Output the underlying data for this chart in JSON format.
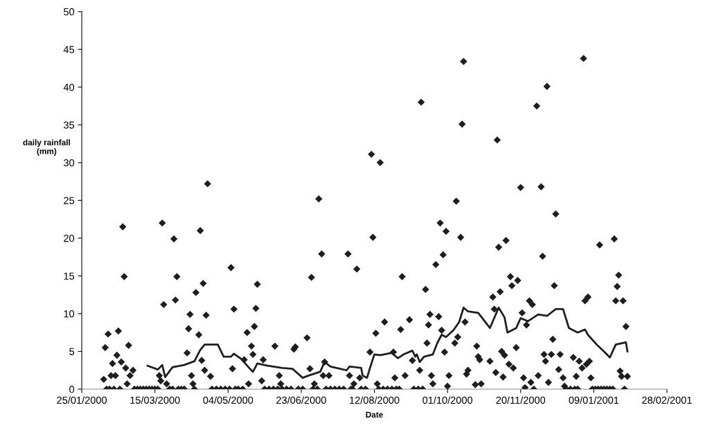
{
  "chart_data": {
    "type": "scatter",
    "xlabel": "Date",
    "ylabel": "daily rainfall\n(mm)",
    "xlim": [
      "2000-01-25",
      "2001-02-28"
    ],
    "xticks": [
      {
        "value": "2000-01-25",
        "label": "25/01/2000"
      },
      {
        "value": "2000-03-15",
        "label": "15/03/2000"
      },
      {
        "value": "2000-05-04",
        "label": "04/05/2000"
      },
      {
        "value": "2000-06-23",
        "label": "23/06/2000"
      },
      {
        "value": "2000-08-12",
        "label": "12/08/2000"
      },
      {
        "value": "2000-10-01",
        "label": "01/10/2000"
      },
      {
        "value": "2000-11-20",
        "label": "20/11/2000"
      },
      {
        "value": "2001-01-09",
        "label": "09/01/2001"
      },
      {
        "value": "2001-02-28",
        "label": "28/02/2001"
      }
    ],
    "ylim": [
      0,
      50
    ],
    "yticks": [
      0,
      5,
      10,
      15,
      20,
      25,
      30,
      35,
      40,
      45,
      50
    ],
    "grid": false,
    "series": [
      {
        "marker": "diamond",
        "color": "#1e1e1e",
        "x": [
          "2000-02-09",
          "2000-02-10",
          "2000-02-11",
          "2000-02-12",
          "2000-02-13",
          "2000-02-14",
          "2000-02-15",
          "2000-02-16",
          "2000-02-17",
          "2000-02-18",
          "2000-02-19",
          "2000-02-20",
          "2000-02-21",
          "2000-02-22",
          "2000-02-23",
          "2000-02-24",
          "2000-02-25",
          "2000-02-26",
          "2000-02-27",
          "2000-02-29",
          "2000-03-01",
          "2000-03-03",
          "2000-03-05",
          "2000-03-07",
          "2000-03-09",
          "2000-03-11",
          "2000-03-13",
          "2000-03-15",
          "2000-03-17",
          "2000-03-18",
          "2000-03-19",
          "2000-03-20",
          "2000-03-21",
          "2000-03-23",
          "2000-03-25",
          "2000-03-27",
          "2000-03-28",
          "2000-03-29",
          "2000-03-30",
          "2000-03-31",
          "2000-04-02",
          "2000-04-04",
          "2000-04-06",
          "2000-04-07",
          "2000-04-08",
          "2000-04-09",
          "2000-04-10",
          "2000-04-11",
          "2000-04-12",
          "2000-04-14",
          "2000-04-15",
          "2000-04-16",
          "2000-04-17",
          "2000-04-18",
          "2000-04-19",
          "2000-04-20",
          "2000-04-22",
          "2000-04-23",
          "2000-04-26",
          "2000-04-29",
          "2000-05-02",
          "2000-05-05",
          "2000-05-06",
          "2000-05-07",
          "2000-05-08",
          "2000-05-09",
          "2000-05-11",
          "2000-05-14",
          "2000-05-15",
          "2000-05-17",
          "2000-05-18",
          "2000-05-20",
          "2000-05-21",
          "2000-05-22",
          "2000-05-23",
          "2000-05-24",
          "2000-05-27",
          "2000-05-28",
          "2000-05-29",
          "2000-06-01",
          "2000-06-04",
          "2000-06-05",
          "2000-06-07",
          "2000-06-08",
          "2000-06-09",
          "2000-06-10",
          "2000-06-13",
          "2000-06-16",
          "2000-06-18",
          "2000-06-19",
          "2000-06-21",
          "2000-06-24",
          "2000-06-27",
          "2000-06-29",
          "2000-06-30",
          "2000-07-01",
          "2000-07-02",
          "2000-07-04",
          "2000-07-05",
          "2000-07-07",
          "2000-07-08",
          "2000-07-09",
          "2000-07-10",
          "2000-07-12",
          "2000-07-13",
          "2000-07-16",
          "2000-07-19",
          "2000-07-22",
          "2000-07-25",
          "2000-07-26",
          "2000-07-27",
          "2000-07-28",
          "2000-07-29",
          "2000-07-31",
          "2000-08-02",
          "2000-08-03",
          "2000-08-06",
          "2000-08-09",
          "2000-08-10",
          "2000-08-11",
          "2000-08-13",
          "2000-08-14",
          "2000-08-15",
          "2000-08-16",
          "2000-08-18",
          "2000-08-19",
          "2000-08-21",
          "2000-08-24",
          "2000-08-25",
          "2000-08-26",
          "2000-08-27",
          "2000-08-29",
          "2000-08-30",
          "2000-08-31",
          "2000-09-02",
          "2000-09-05",
          "2000-09-07",
          "2000-09-08",
          "2000-09-11",
          "2000-09-12",
          "2000-09-13",
          "2000-09-14",
          "2000-09-16",
          "2000-09-17",
          "2000-09-18",
          "2000-09-19",
          "2000-09-20",
          "2000-09-21",
          "2000-09-23",
          "2000-09-25",
          "2000-09-26",
          "2000-09-27",
          "2000-09-28",
          "2000-09-29",
          "2000-09-30",
          "2000-10-01",
          "2000-10-02",
          "2000-10-06",
          "2000-10-07",
          "2000-10-08",
          "2000-10-10",
          "2000-10-11",
          "2000-10-12",
          "2000-10-13",
          "2000-10-14",
          "2000-10-15",
          "2000-10-20",
          "2000-10-21",
          "2000-10-22",
          "2000-10-23",
          "2000-10-24",
          "2000-10-30",
          "2000-11-01",
          "2000-11-02",
          "2000-11-03",
          "2000-11-04",
          "2000-11-05",
          "2000-11-06",
          "2000-11-07",
          "2000-11-08",
          "2000-11-09",
          "2000-11-10",
          "2000-11-12",
          "2000-11-13",
          "2000-11-14",
          "2000-11-15",
          "2000-11-17",
          "2000-11-18",
          "2000-11-20",
          "2000-11-21",
          "2000-11-22",
          "2000-11-23",
          "2000-11-24",
          "2000-11-26",
          "2000-11-27",
          "2000-11-28",
          "2000-11-29",
          "2000-12-01",
          "2000-12-02",
          "2000-12-04",
          "2000-12-05",
          "2000-12-06",
          "2000-12-07",
          "2000-12-08",
          "2000-12-09",
          "2000-12-11",
          "2000-12-12",
          "2000-12-13",
          "2000-12-14",
          "2000-12-16",
          "2000-12-17",
          "2000-12-19",
          "2000-12-20",
          "2000-12-21",
          "2000-12-24",
          "2000-12-26",
          "2000-12-27",
          "2000-12-28",
          "2000-12-29",
          "2000-12-30",
          "2001-01-01",
          "2001-01-02",
          "2001-01-03",
          "2001-01-04",
          "2001-01-05",
          "2001-01-06",
          "2001-01-07",
          "2001-01-08",
          "2001-01-10",
          "2001-01-12",
          "2001-01-13",
          "2001-01-14",
          "2001-01-16",
          "2001-01-18",
          "2001-01-20",
          "2001-01-22",
          "2001-01-23",
          "2001-01-24",
          "2001-01-25",
          "2001-01-26",
          "2001-01-27",
          "2001-01-28",
          "2001-01-29",
          "2001-01-30",
          "2001-01-31",
          "2001-02-01"
        ],
        "values": [
          1.3,
          5.5,
          0,
          7.3,
          0,
          1.8,
          3.4,
          0,
          1.8,
          4.5,
          7.7,
          0,
          3.6,
          21.5,
          14.9,
          2.8,
          0.7,
          5.8,
          1.8,
          2.5,
          0,
          0,
          0,
          0,
          0,
          0,
          0,
          0,
          0,
          1.8,
          1.1,
          22,
          11.2,
          0.7,
          0,
          0,
          19.9,
          11.8,
          14.9,
          0,
          0,
          0,
          4.8,
          8.0,
          9.9,
          1.8,
          0.7,
          0,
          12.8,
          7.2,
          21,
          3.8,
          14.0,
          2.5,
          9.8,
          27.2,
          1.7,
          0,
          0,
          0,
          0,
          0,
          16.1,
          2.7,
          10.6,
          0,
          0,
          0,
          3.9,
          7.5,
          0.7,
          5.7,
          4.6,
          8.3,
          10.7,
          13.9,
          1.1,
          3.9,
          0,
          0,
          0,
          5.7,
          0,
          1.8,
          0.7,
          0,
          0,
          0,
          5.3,
          5.6,
          0,
          0,
          6.8,
          2.7,
          14.8,
          0,
          0.7,
          0,
          25.2,
          17.9,
          1.8,
          3.6,
          0,
          1.8,
          0,
          0,
          0,
          0,
          17.9,
          1.8,
          0,
          0,
          0.7,
          15.9,
          1.5,
          0,
          0,
          4.9,
          31.1,
          20.1,
          7.4,
          0.7,
          0,
          30.0,
          0,
          8.9,
          0,
          0,
          4.9,
          1.5,
          0,
          0,
          7.9,
          14.9,
          1.8,
          9.2,
          3.8,
          0,
          0,
          2.5,
          38.0,
          0,
          13.2,
          6.1,
          8.5,
          9.9,
          1.8,
          0.7,
          16.5,
          9.6,
          22.0,
          7.8,
          17.8,
          4.9,
          20.9,
          0.4,
          1.8,
          6.1,
          24.9,
          6.9,
          20.1,
          35.1,
          43.4,
          8.9,
          2.0,
          2.5,
          0.6,
          5.7,
          4.3,
          3.9,
          0.7,
          3.7,
          12.2,
          10.6,
          2.2,
          33.0,
          18.8,
          12.9,
          5.0,
          1.6,
          4.5,
          19.7,
          3.3,
          14.9,
          13.7,
          2.8,
          5.5,
          14.4,
          26.7,
          10.1,
          1.5,
          0.2,
          8.5,
          11.7,
          0.9,
          11.2,
          0,
          37.5,
          1.8,
          26.8,
          17.6,
          4.6,
          3.7,
          40.1,
          0.9,
          4.6,
          6.6,
          13.7,
          23.2,
          2.6,
          4.6,
          1.5,
          0.4,
          0,
          0,
          4.2,
          0,
          1.7,
          0,
          3.7,
          2.8,
          43.8,
          11.7,
          3.3,
          12.2,
          3.7,
          1.5,
          0,
          0,
          0,
          19.1,
          0,
          0,
          0,
          0,
          0,
          19.9,
          11.7,
          13.6,
          15.1,
          2.4,
          1.7,
          11.7,
          0,
          8.3,
          1.7
        ]
      },
      {
        "type": "line",
        "line_style": "solid",
        "color": "#1e1e1e",
        "x": [
          "2000-03-10",
          "2000-03-17",
          "2000-03-20",
          "2000-03-22",
          "2000-03-27",
          "2000-04-04",
          "2000-04-11",
          "2000-04-15",
          "2000-04-18",
          "2000-04-27",
          "2000-05-01",
          "2000-05-06",
          "2000-05-08",
          "2000-05-13",
          "2000-05-18",
          "2000-05-21",
          "2000-05-24",
          "2000-05-31",
          "2000-06-10",
          "2000-06-17",
          "2000-06-24",
          "2000-06-28",
          "2000-07-06",
          "2000-07-09",
          "2000-07-13",
          "2000-07-24",
          "2000-07-26",
          "2000-08-03",
          "2000-08-04",
          "2000-08-07",
          "2000-08-09",
          "2000-08-12",
          "2000-08-16",
          "2000-08-24",
          "2000-08-28",
          "2000-09-01",
          "2000-09-07",
          "2000-09-09",
          "2000-09-10",
          "2000-09-12",
          "2000-09-15",
          "2000-09-21",
          "2000-09-24",
          "2000-09-27",
          "2000-09-30",
          "2000-10-05",
          "2000-10-09",
          "2000-10-12",
          "2000-10-15",
          "2000-10-22",
          "2000-10-30",
          "2000-11-05",
          "2000-11-09",
          "2000-11-11",
          "2000-11-17",
          "2000-11-20",
          "2000-11-25",
          "2000-12-02",
          "2000-12-08",
          "2000-12-14",
          "2000-12-19",
          "2000-12-23",
          "2000-12-29",
          "2001-01-03",
          "2001-01-05",
          "2001-01-11",
          "2001-01-17",
          "2001-01-20",
          "2001-01-24",
          "2001-01-31",
          "2001-02-01"
        ],
        "values": [
          3.1,
          2.6,
          3.2,
          1.6,
          2.9,
          3.2,
          3.7,
          5.2,
          5.9,
          5.9,
          4.3,
          4.3,
          4.7,
          4.0,
          2.9,
          2.3,
          3.4,
          3.1,
          2.8,
          2.7,
          1.5,
          1.8,
          2.3,
          3.6,
          3.0,
          2.5,
          3.0,
          2.8,
          1.8,
          1.5,
          2.8,
          4.6,
          4.5,
          4.8,
          4.1,
          4.6,
          5.1,
          4.3,
          4.6,
          3.6,
          4.3,
          4.6,
          6.1,
          7.2,
          6.9,
          7.8,
          8.9,
          10.8,
          10.3,
          10.1,
          8.1,
          10.8,
          9.5,
          7.5,
          8.1,
          9.4,
          9.0,
          9.9,
          9.7,
          10.6,
          10.6,
          8.1,
          7.5,
          7.9,
          7.2,
          5.9,
          4.8,
          4.2,
          5.9,
          6.2,
          5.0
        ]
      }
    ]
  }
}
